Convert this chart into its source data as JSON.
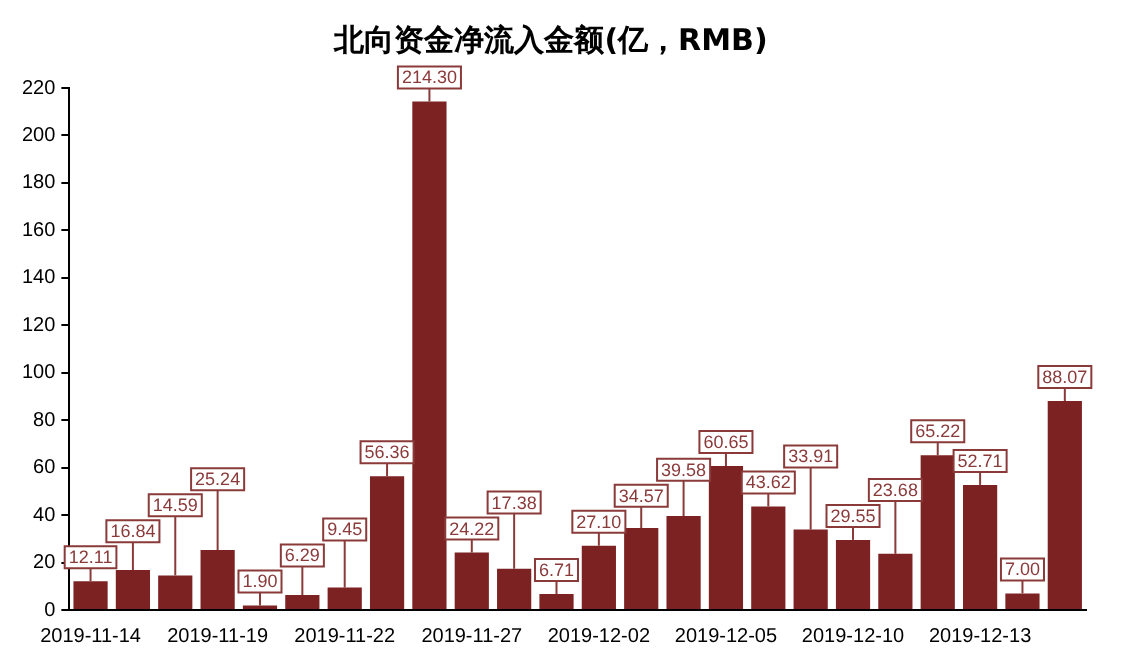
{
  "chart_data": {
    "type": "bar",
    "title": "北向资金净流入金额(亿，RMB)",
    "categories": [
      "2019-11-14",
      null,
      null,
      "2019-11-19",
      null,
      null,
      "2019-11-22",
      null,
      null,
      "2019-11-27",
      null,
      null,
      "2019-12-02",
      null,
      null,
      "2019-12-05",
      null,
      null,
      "2019-12-10",
      null,
      null,
      "2019-12-13",
      null,
      null
    ],
    "values": [
      12.11,
      16.84,
      14.59,
      25.24,
      1.9,
      6.29,
      9.45,
      56.36,
      214.3,
      24.22,
      17.38,
      6.71,
      27.1,
      34.57,
      39.58,
      60.65,
      43.62,
      33.91,
      29.55,
      23.68,
      65.22,
      52.71,
      7.0,
      88.07
    ],
    "value_labels": [
      "12.11",
      "16.84",
      "14.59",
      "25.24",
      "1.90",
      "6.29",
      "9.45",
      "56.36",
      "214.30",
      "24.22",
      "17.38",
      "6.71",
      "27.10",
      "34.57",
      "39.58",
      "60.65",
      "43.62",
      "33.91",
      "29.55",
      "23.68",
      "65.22",
      "52.71",
      "7.00",
      "88.07"
    ],
    "color": "#7d2222",
    "ylim": [
      0,
      220
    ],
    "yticks": [
      0,
      20,
      40,
      60,
      80,
      100,
      120,
      140,
      160,
      180,
      200,
      220
    ],
    "grid": false,
    "legend": false
  }
}
